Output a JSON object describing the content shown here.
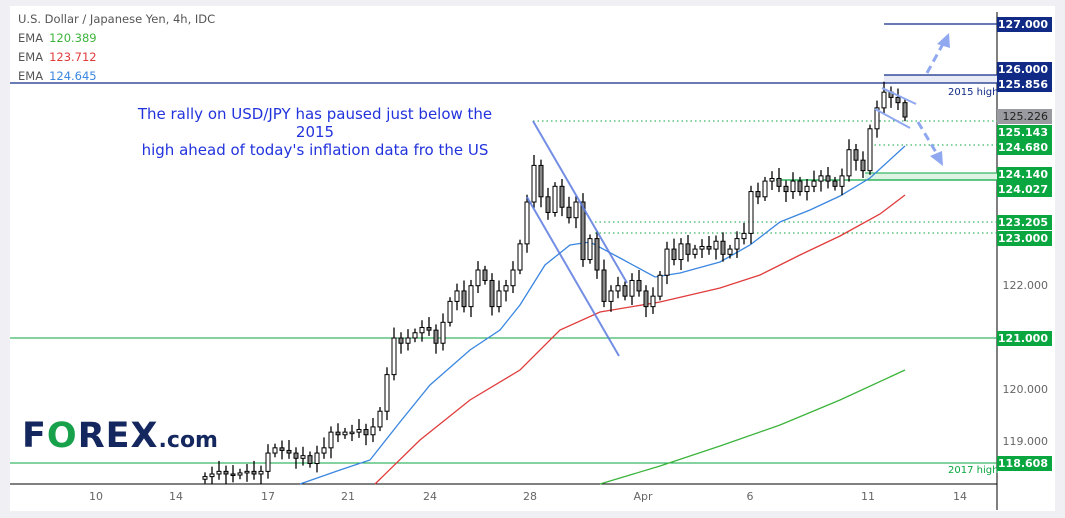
{
  "header": {
    "title": "U.S. Dollar / Japanese Yen, 4h, IDC",
    "emas": [
      {
        "label": "EMA",
        "value": "120.389",
        "color": "#3cb43c"
      },
      {
        "label": "EMA",
        "value": "123.712",
        "color": "#e03c3c"
      },
      {
        "label": "EMA",
        "value": "124.645",
        "color": "#3a86e0"
      }
    ]
  },
  "annotation": {
    "line1": "The rally on USD/JPY has paused just below the 2015",
    "line2": "high ahead of today's inflation data fro the US"
  },
  "level_tags": {
    "high_2015": "2015 high",
    "high_2017": "2017 high"
  },
  "logo": {
    "text_pre": "F",
    "text_o": "O",
    "text_post": "REX",
    "suffix": ".com"
  },
  "price_labels": [
    {
      "value": "127.000",
      "style": "navy"
    },
    {
      "value": "126.000",
      "style": "navy"
    },
    {
      "value": "125.856",
      "style": "navy"
    },
    {
      "value": "125.226",
      "style": "gray"
    },
    {
      "value": "125.143",
      "style": "green"
    },
    {
      "value": "124.680",
      "style": "green"
    },
    {
      "value": "124.140",
      "style": "green"
    },
    {
      "value": "124.027",
      "style": "green"
    },
    {
      "value": "123.205",
      "style": "green"
    },
    {
      "value": "123.000",
      "style": "green"
    },
    {
      "value": "122.000",
      "style": "plain"
    },
    {
      "value": "121.000",
      "style": "green"
    },
    {
      "value": "120.000",
      "style": "plain"
    },
    {
      "value": "119.000",
      "style": "plain"
    },
    {
      "value": "118.608",
      "style": "green"
    }
  ],
  "x_labels": [
    "10",
    "14",
    "17",
    "21",
    "24",
    "28",
    "Apr",
    "6",
    "11",
    "14"
  ],
  "chart_data": {
    "type": "candlestick",
    "title": "U.S. Dollar / Japanese Yen, 4h, IDC",
    "ylim": [
      118.2,
      127.2
    ],
    "grid": false,
    "closes": [
      118.35,
      118.4,
      118.45,
      118.4,
      118.38,
      118.42,
      118.45,
      118.4,
      118.45,
      118.8,
      118.9,
      118.85,
      118.8,
      118.7,
      118.75,
      118.6,
      118.8,
      118.9,
      119.2,
      119.15,
      119.2,
      119.2,
      119.25,
      119.15,
      119.3,
      119.6,
      120.3,
      121.0,
      120.9,
      121.0,
      121.1,
      121.2,
      121.15,
      120.9,
      121.3,
      121.7,
      121.9,
      121.6,
      122.0,
      122.3,
      122.1,
      121.6,
      121.9,
      122.0,
      122.3,
      122.8,
      123.6,
      124.3,
      123.7,
      123.4,
      123.9,
      123.5,
      123.3,
      123.6,
      122.5,
      122.9,
      122.3,
      121.7,
      121.9,
      122.0,
      121.8,
      122.1,
      121.9,
      121.6,
      121.8,
      122.2,
      122.7,
      122.5,
      122.8,
      122.6,
      122.7,
      122.75,
      122.7,
      122.85,
      122.6,
      122.7,
      122.9,
      123.0,
      123.8,
      123.7,
      124.0,
      124.05,
      123.9,
      123.8,
      124.0,
      123.8,
      123.9,
      124.0,
      124.1,
      124.0,
      123.9,
      124.1,
      124.6,
      124.4,
      124.2,
      125.0,
      125.4,
      125.7,
      125.6,
      125.5,
      125.226
    ],
    "ema_last_values": [
      120.389,
      123.712,
      124.645
    ],
    "horizontal_levels": [
      127.0,
      126.0,
      125.856,
      125.143,
      124.68,
      124.14,
      124.027,
      123.205,
      123.0,
      121.0,
      118.608
    ],
    "colors": {
      "navy": "#102a86",
      "green": "#0aa640",
      "trend": "#5b7be0",
      "arrow": "#8fa8f0"
    }
  }
}
